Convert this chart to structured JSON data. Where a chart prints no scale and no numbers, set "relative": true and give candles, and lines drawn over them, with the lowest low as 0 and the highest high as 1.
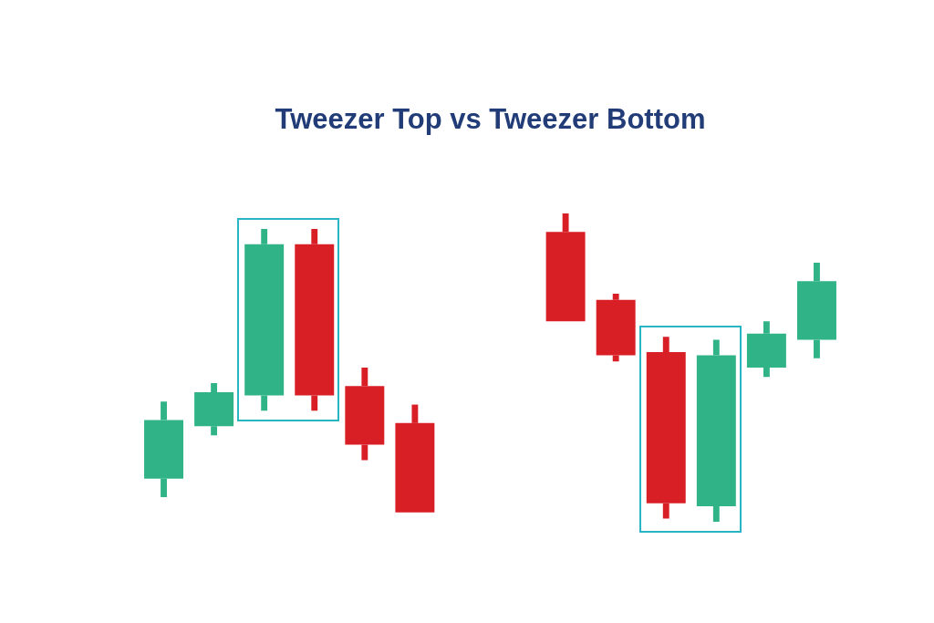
{
  "chart_data": {
    "type": "candlestick",
    "title": "Tweezer Top vs Tweezer Bottom",
    "categories": [
      null,
      null,
      null,
      null,
      null,
      null,
      null,
      null,
      null,
      null,
      null,
      null,
      null,
      null
    ],
    "ohlc": [
      [
        0.14,
        0.39,
        0.08,
        0.33
      ],
      [
        0.31,
        0.45,
        0.28,
        0.42
      ],
      [
        0.41,
        0.95,
        0.36,
        0.9
      ],
      [
        0.9,
        0.95,
        0.36,
        0.41
      ],
      [
        0.44,
        0.5,
        0.2,
        0.25
      ],
      [
        0.32,
        0.38,
        0.03,
        0.03
      ],
      null,
      null,
      [
        0.94,
        1,
        0.65,
        0.65
      ],
      [
        0.72,
        0.74,
        0.52,
        0.54
      ],
      [
        0.55,
        0.6,
        0.01,
        0.06
      ],
      [
        0.05,
        0.59,
        0,
        0.54
      ],
      [
        0.5,
        0.65,
        0.47,
        0.61
      ],
      [
        0.59,
        0.84,
        0.53,
        0.78
      ]
    ],
    "colors": [
      "#2fb387",
      "#2fb387",
      "#2fb387",
      "#d91f26",
      "#d91f26",
      "#d91f26",
      null,
      null,
      "#d91f26",
      "#d91f26",
      "#d91f26",
      "#2fb387",
      "#2fb387",
      "#2fb387"
    ],
    "relative": true,
    "tick_labels": false
  }
}
